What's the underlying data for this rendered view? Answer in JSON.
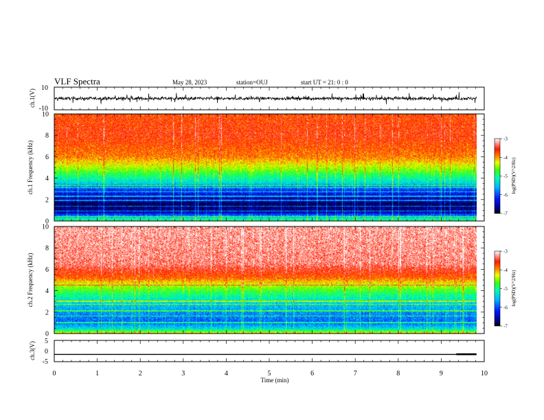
{
  "header": {
    "title": "VLF Spectra",
    "date": "May 28, 2023",
    "station": "station=OUJ",
    "start_ut": "start UT =  21: 0  : 0"
  },
  "chart_data": [
    {
      "type": "line",
      "name": "ch1-waveform",
      "ylabel": "ch.1(V)",
      "xlim": [
        0,
        10
      ],
      "ylim": [
        -10,
        10
      ],
      "yticks": [
        "10",
        "-10"
      ],
      "baseline": 0,
      "amplitude": 3
    },
    {
      "type": "heatmap",
      "name": "ch1-spectrogram",
      "ylabel": "ch.1 Frequency (kHz)",
      "xlim": [
        0,
        9.82
      ],
      "ylim": [
        0,
        10
      ],
      "yticks": [
        "0",
        "2",
        "4",
        "6",
        "8",
        "10"
      ],
      "zlim": [
        -7,
        -3
      ],
      "zlabel": "log(PSD)(V^2/Hz)",
      "zticks": [
        "-3",
        "-4",
        "-5",
        "-6",
        "-7"
      ],
      "profile": [
        {
          "f": 0.0,
          "z": -4.9
        },
        {
          "f": 0.3,
          "z": -5.4
        },
        {
          "f": 0.8,
          "z": -6.6
        },
        {
          "f": 1.5,
          "z": -6.8
        },
        {
          "f": 2.2,
          "z": -6.5
        },
        {
          "f": 3.0,
          "z": -6.0
        },
        {
          "f": 3.6,
          "z": -5.3
        },
        {
          "f": 4.3,
          "z": -4.9
        },
        {
          "f": 5.0,
          "z": -4.4
        },
        {
          "f": 6.0,
          "z": -3.9
        },
        {
          "f": 8.0,
          "z": -3.6
        },
        {
          "f": 10.0,
          "z": -3.7
        }
      ],
      "tone_lines_khz": [
        0.4,
        0.9,
        1.35,
        1.9,
        2.3,
        2.7,
        3.1,
        3.3
      ]
    },
    {
      "type": "heatmap",
      "name": "ch2-spectrogram",
      "ylabel": "ch.2 Frequency (kHz)",
      "xlim": [
        0,
        9.82
      ],
      "ylim": [
        0,
        10
      ],
      "yticks": [
        "0",
        "2",
        "4",
        "6",
        "8",
        "10"
      ],
      "zlim": [
        -7,
        -3
      ],
      "zlabel": "log(PSD)(V^2/Hz)",
      "zticks": [
        "-3",
        "-4",
        "-5",
        "-6",
        "-7"
      ],
      "profile": [
        {
          "f": 0.0,
          "z": -4.2
        },
        {
          "f": 0.4,
          "z": -5.3
        },
        {
          "f": 1.0,
          "z": -5.9
        },
        {
          "f": 2.0,
          "z": -5.7
        },
        {
          "f": 2.8,
          "z": -5.4
        },
        {
          "f": 3.6,
          "z": -5.0
        },
        {
          "f": 4.5,
          "z": -4.4
        },
        {
          "f": 5.2,
          "z": -3.8
        },
        {
          "f": 6.5,
          "z": -3.3
        },
        {
          "f": 10.0,
          "z": -3.2
        }
      ],
      "tone_lines_khz": [
        1.0,
        1.6,
        2.1,
        2.7,
        3.0,
        4.5
      ]
    },
    {
      "type": "line",
      "name": "ch3-waveform",
      "ylabel": "ch.3(V)",
      "xlim": [
        0,
        10
      ],
      "ylim": [
        -5,
        5
      ],
      "yticks": [
        "5",
        "0",
        "-5"
      ],
      "baseline": -1.6,
      "step_at_min": 9.35,
      "step_value": -1.3
    }
  ],
  "xaxis": {
    "label": "Time (min)",
    "ticks": [
      "0",
      "1",
      "2",
      "3",
      "4",
      "5",
      "6",
      "7",
      "8",
      "9",
      "10"
    ]
  }
}
